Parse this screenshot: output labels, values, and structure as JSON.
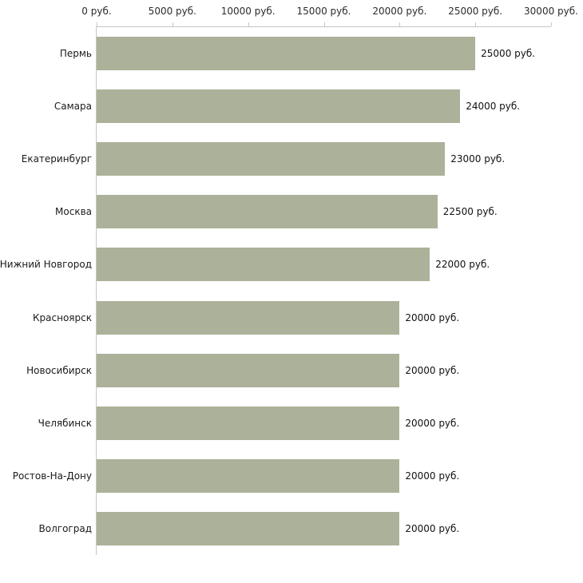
{
  "chart_data": {
    "type": "bar",
    "orientation": "horizontal",
    "categories": [
      "Пермь",
      "Самара",
      "Екатеринбург",
      "Москва",
      "Нижний Новгород",
      "Красноярск",
      "Новосибирск",
      "Челябинск",
      "Ростов-На-Дону",
      "Волгоград"
    ],
    "values": [
      25000,
      24000,
      23000,
      22500,
      22000,
      20000,
      20000,
      20000,
      20000,
      20000
    ],
    "value_labels": [
      "25000 руб.",
      "24000 руб.",
      "23000 руб.",
      "22500 руб.",
      "22000 руб.",
      "20000 руб.",
      "20000 руб.",
      "20000 руб.",
      "20000 руб.",
      "20000 руб."
    ],
    "x_ticks": [
      0,
      5000,
      10000,
      15000,
      20000,
      25000,
      30000
    ],
    "x_tick_labels": [
      "0 руб.",
      "5000 руб.",
      "10000 руб.",
      "15000 руб.",
      "20000 руб.",
      "25000 руб.",
      "30000 руб."
    ],
    "xlim": [
      0,
      30000
    ],
    "bar_color": "#abb299",
    "axis_color": "#c6c6c6",
    "grid": false,
    "legend": "none",
    "title": ""
  }
}
